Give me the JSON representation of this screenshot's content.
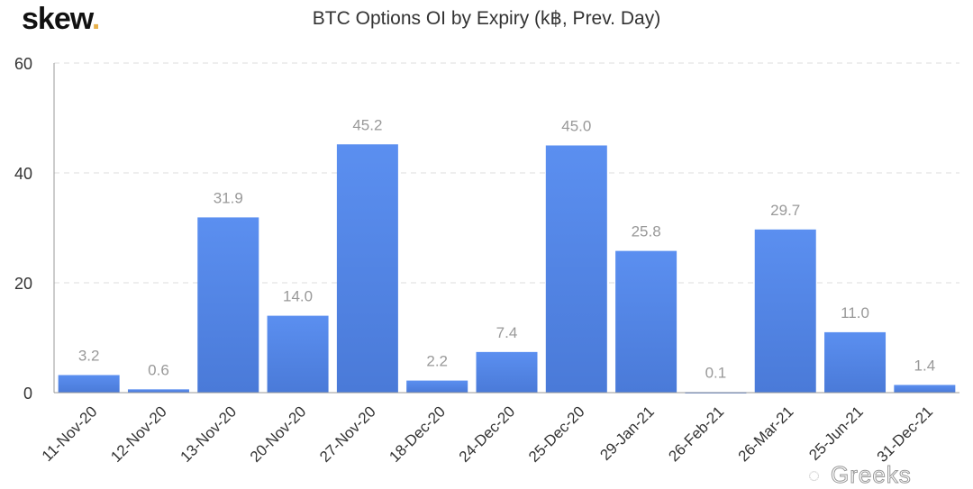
{
  "logo": {
    "text": "skew",
    "dot": "."
  },
  "watermark": "Greeks",
  "chart_data": {
    "type": "bar",
    "title": "BTC Options OI by Expiry (k฿, Prev. Day)",
    "categories": [
      "11-Nov-20",
      "12-Nov-20",
      "13-Nov-20",
      "20-Nov-20",
      "27-Nov-20",
      "18-Dec-20",
      "24-Dec-20",
      "25-Dec-20",
      "29-Jan-21",
      "26-Feb-21",
      "26-Mar-21",
      "25-Jun-21",
      "31-Dec-21"
    ],
    "values": [
      3.2,
      0.6,
      31.9,
      14.0,
      45.2,
      2.2,
      7.4,
      45.0,
      25.8,
      0.1,
      29.7,
      11.0,
      1.4
    ],
    "data_labels": [
      "3.2",
      "0.6",
      "31.9",
      "14.0",
      "45.2",
      "2.2",
      "7.4",
      "45.0",
      "25.8",
      "0.1",
      "29.7",
      "11.0",
      "1.4"
    ],
    "ylim": [
      0,
      60
    ],
    "yticks": [
      "0",
      "20",
      "40",
      "60"
    ],
    "xlabel": "",
    "ylabel": "",
    "grid": true,
    "bar_color": "#5b8ff0",
    "bar_color_bottom": "#4a7ad8"
  }
}
